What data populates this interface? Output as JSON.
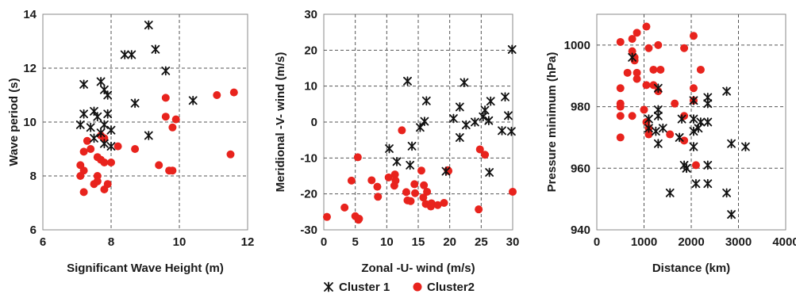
{
  "chart_data": [
    {
      "type": "scatter",
      "xlabel": "Significant Wave Height (m)",
      "ylabel": "Wave period (s)",
      "xlim": [
        6,
        12
      ],
      "ylim": [
        6,
        14
      ],
      "xticks": [
        "6",
        "8",
        "10",
        "12"
      ],
      "yticks": [
        "6",
        "8",
        "10",
        "12",
        "14"
      ],
      "grid": "horizontal and vertical dashed",
      "series": [
        {
          "name": "Cluster 1",
          "marker": "star",
          "color": "#111111",
          "points": [
            [
              9.1,
              13.6
            ],
            [
              9.3,
              12.7
            ],
            [
              8.4,
              12.5
            ],
            [
              8.6,
              12.5
            ],
            [
              9.6,
              11.9
            ],
            [
              7.2,
              11.4
            ],
            [
              7.7,
              11.5
            ],
            [
              7.8,
              11.2
            ],
            [
              7.9,
              11.0
            ],
            [
              8.7,
              10.7
            ],
            [
              10.4,
              10.8
            ],
            [
              7.2,
              10.3
            ],
            [
              7.5,
              10.4
            ],
            [
              7.6,
              10.2
            ],
            [
              7.9,
              10.3
            ],
            [
              7.1,
              9.9
            ],
            [
              7.4,
              9.8
            ],
            [
              7.8,
              9.9
            ],
            [
              8.0,
              9.7
            ],
            [
              7.5,
              9.4
            ],
            [
              7.7,
              9.6
            ],
            [
              9.1,
              9.5
            ],
            [
              7.8,
              9.2
            ],
            [
              8.0,
              9.1
            ]
          ]
        },
        {
          "name": "Cluster2",
          "marker": "circle",
          "color": "#e8231d",
          "points": [
            [
              11.1,
              11.0
            ],
            [
              11.6,
              11.1
            ],
            [
              9.6,
              10.9
            ],
            [
              9.6,
              10.2
            ],
            [
              9.9,
              10.1
            ],
            [
              9.8,
              9.8
            ],
            [
              7.3,
              9.3
            ],
            [
              7.2,
              8.9
            ],
            [
              7.4,
              9.0
            ],
            [
              7.7,
              9.5
            ],
            [
              7.8,
              9.4
            ],
            [
              8.2,
              9.1
            ],
            [
              8.7,
              9.0
            ],
            [
              7.6,
              8.7
            ],
            [
              7.8,
              8.5
            ],
            [
              7.7,
              8.6
            ],
            [
              8.0,
              8.5
            ],
            [
              7.1,
              8.4
            ],
            [
              9.4,
              8.4
            ],
            [
              9.7,
              8.2
            ],
            [
              9.8,
              8.2
            ],
            [
              7.2,
              8.2
            ],
            [
              7.1,
              8.0
            ],
            [
              7.6,
              8.0
            ],
            [
              11.5,
              8.8
            ],
            [
              7.5,
              7.7
            ],
            [
              7.6,
              7.8
            ],
            [
              7.8,
              7.5
            ],
            [
              7.2,
              7.4
            ],
            [
              7.9,
              7.7
            ]
          ]
        }
      ]
    },
    {
      "type": "scatter",
      "xlabel": "Zonal -U- wind (m/s)",
      "ylabel": "Meridional -V- wind (m/s)",
      "xlim": [
        0,
        30
      ],
      "ylim": [
        -30,
        30
      ],
      "xticks": [
        "0",
        "5",
        "10",
        "15",
        "20",
        "25",
        "30"
      ],
      "yticks": [
        "-30",
        "-20",
        "-10",
        "0",
        "10",
        "20",
        "30"
      ],
      "grid": "horizontal and vertical dashed",
      "series": [
        {
          "name": "Cluster 1",
          "marker": "star",
          "color": "#111111",
          "points": [
            [
              29.9,
              20.2
            ],
            [
              13.3,
              11.4
            ],
            [
              22.3,
              11.0
            ],
            [
              28.8,
              7.0
            ],
            [
              16.3,
              5.9
            ],
            [
              26.5,
              5.8
            ],
            [
              21.6,
              4.2
            ],
            [
              25.6,
              3.3
            ],
            [
              20.6,
              1.0
            ],
            [
              25.3,
              1.5
            ],
            [
              29.3,
              1.8
            ],
            [
              15.3,
              -1.5
            ],
            [
              16.0,
              0.2
            ],
            [
              22.6,
              -0.8
            ],
            [
              24.0,
              0.0
            ],
            [
              26.2,
              0.4
            ],
            [
              28.3,
              -2.4
            ],
            [
              29.8,
              -2.6
            ],
            [
              21.6,
              -4.3
            ],
            [
              10.4,
              -7.4
            ],
            [
              14.0,
              -6.7
            ],
            [
              11.6,
              -11.0
            ],
            [
              13.7,
              -12.0
            ],
            [
              26.3,
              -14.0
            ],
            [
              19.4,
              -13.7
            ]
          ]
        },
        {
          "name": "Cluster2",
          "marker": "circle",
          "color": "#e8231d",
          "points": [
            [
              12.4,
              -2.3
            ],
            [
              5.4,
              -9.8
            ],
            [
              10.3,
              -15.4
            ],
            [
              11.3,
              -14.6
            ],
            [
              15.5,
              -13.5
            ],
            [
              4.4,
              -16.3
            ],
            [
              7.6,
              -16.2
            ],
            [
              11.4,
              -16.3
            ],
            [
              11.2,
              -17.7
            ],
            [
              14.4,
              -17.3
            ],
            [
              15.9,
              -17.6
            ],
            [
              8.5,
              -18.0
            ],
            [
              13.1,
              -19.5
            ],
            [
              16.4,
              -19.4
            ],
            [
              19.7,
              -13.4
            ],
            [
              19.8,
              -13.6
            ],
            [
              25.6,
              -9.1
            ],
            [
              24.8,
              -7.6
            ],
            [
              8.6,
              -20.8
            ],
            [
              13.3,
              -21.8
            ],
            [
              15.8,
              -21.0
            ],
            [
              13.8,
              -22.0
            ],
            [
              17.1,
              -22.6
            ],
            [
              16.2,
              -22.8
            ],
            [
              19.1,
              -22.5
            ],
            [
              18.1,
              -23.1
            ],
            [
              17.0,
              -23.5
            ],
            [
              24.6,
              -24.3
            ],
            [
              3.3,
              -23.8
            ],
            [
              0.5,
              -26.4
            ],
            [
              5.0,
              -26.2
            ],
            [
              5.5,
              -27.2
            ],
            [
              5.6,
              -26.9
            ],
            [
              30.0,
              -19.4
            ],
            [
              14.5,
              -19.8
            ]
          ]
        }
      ]
    },
    {
      "type": "scatter",
      "xlabel": "Distance (km)",
      "ylabel": "Pressure minimum (hPa)",
      "xlim": [
        0,
        4000
      ],
      "ylim": [
        940,
        1010
      ],
      "xticks": [
        "0",
        "1000",
        "2000",
        "3000",
        "4000"
      ],
      "yticks": [
        "940",
        "960",
        "980",
        "1000"
      ],
      "grid": "horizontal and vertical dashed",
      "series": [
        {
          "name": "Cluster 1",
          "marker": "star",
          "color": "#111111",
          "points": [
            [
              750,
              996
            ],
            [
              1300,
              986
            ],
            [
              2350,
              983
            ],
            [
              2750,
              985
            ],
            [
              2050,
              982
            ],
            [
              2350,
              981
            ],
            [
              1100,
              976
            ],
            [
              1300,
              979
            ],
            [
              1800,
              976
            ],
            [
              1300,
              977
            ],
            [
              2050,
              976
            ],
            [
              1100,
              973
            ],
            [
              2200,
              975
            ],
            [
              2350,
              975
            ],
            [
              1400,
              973
            ],
            [
              1250,
              972
            ],
            [
              2050,
              972
            ],
            [
              2150,
              973
            ],
            [
              1750,
              970
            ],
            [
              1300,
              968
            ],
            [
              2050,
              967
            ],
            [
              2850,
              968
            ],
            [
              3150,
              967
            ],
            [
              1850,
              961
            ],
            [
              1900,
              960
            ],
            [
              2350,
              961
            ],
            [
              1900,
              960
            ],
            [
              2100,
              955
            ],
            [
              2350,
              955
            ],
            [
              1550,
              952
            ],
            [
              2750,
              952
            ],
            [
              2850,
              945
            ]
          ]
        },
        {
          "name": "Cluster2",
          "marker": "circle",
          "color": "#e8231d",
          "points": [
            [
              1050,
              1006
            ],
            [
              850,
              1004
            ],
            [
              2050,
              1003
            ],
            [
              500,
              1001
            ],
            [
              750,
              1002
            ],
            [
              1300,
              1000
            ],
            [
              1100,
              999
            ],
            [
              1850,
              999
            ],
            [
              750,
              998
            ],
            [
              800,
              996
            ],
            [
              800,
              995
            ],
            [
              850,
              991
            ],
            [
              650,
              991
            ],
            [
              850,
              989
            ],
            [
              1200,
              992
            ],
            [
              1350,
              992
            ],
            [
              2200,
              992
            ],
            [
              500,
              986
            ],
            [
              1050,
              987
            ],
            [
              1200,
              987
            ],
            [
              1300,
              985
            ],
            [
              2050,
              986
            ],
            [
              500,
              981
            ],
            [
              500,
              980
            ],
            [
              1000,
              979
            ],
            [
              1650,
              981
            ],
            [
              750,
              977
            ],
            [
              500,
              977
            ],
            [
              1850,
              977
            ],
            [
              1050,
              975
            ],
            [
              1100,
              973
            ],
            [
              2050,
              982
            ],
            [
              1100,
              971
            ],
            [
              1550,
              971
            ],
            [
              1850,
              969
            ],
            [
              500,
              970
            ],
            [
              2100,
              961
            ]
          ]
        }
      ]
    }
  ],
  "legend": {
    "items": [
      {
        "label": "Cluster 1",
        "marker": "star"
      },
      {
        "label": "Cluster2",
        "marker": "circle"
      }
    ],
    "position": "bottom-center"
  },
  "colors": {
    "cluster1": "#111111",
    "cluster2": "#e8231d",
    "grid": "#555555",
    "axis": "#888888"
  }
}
